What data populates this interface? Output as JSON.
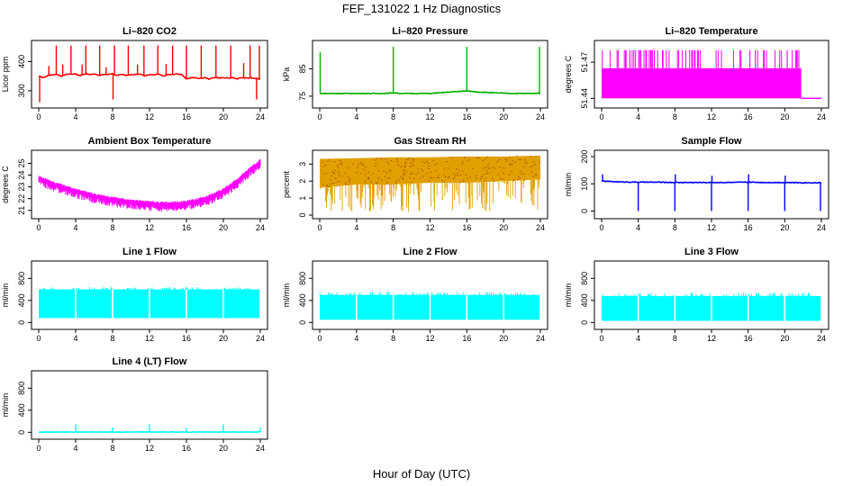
{
  "figure": {
    "title": "FEF_131022  1 Hz Diagnostics",
    "xlabel": "Hour of Day (UTC)"
  },
  "chart_data": [
    {
      "id": "co2",
      "type": "line",
      "title": "Li–820 CO2",
      "ylabel": "Licor ppm",
      "color": "#ff0000",
      "xlim": [
        0,
        24
      ],
      "ylim": [
        253,
        460
      ],
      "xticks": [
        0,
        4,
        8,
        12,
        16,
        20,
        24
      ],
      "yticks": [
        300,
        400
      ],
      "x": [
        0,
        0.5,
        1,
        1.5,
        2,
        2.5,
        3,
        3.5,
        4,
        4.5,
        5,
        5.5,
        6,
        6.5,
        7,
        7.5,
        8,
        8.5,
        9,
        9.5,
        10,
        10.5,
        11,
        11.5,
        12,
        12.5,
        13,
        13.5,
        14,
        14.5,
        15,
        15.5,
        16,
        16.5,
        17,
        17.5,
        18,
        18.5,
        19,
        19.5,
        20,
        20.5,
        21,
        21.5,
        22,
        22.5,
        23,
        23.5,
        24
      ],
      "y": [
        350,
        345,
        352,
        355,
        356,
        350,
        356,
        357,
        357,
        352,
        358,
        356,
        357,
        353,
        355,
        356,
        358,
        352,
        356,
        353,
        355,
        356,
        356,
        352,
        355,
        355,
        358,
        350,
        356,
        356,
        358,
        355,
        340,
        345,
        344,
        342,
        345,
        340,
        346,
        344,
        344,
        343,
        345,
        341,
        345,
        343,
        344,
        342,
        340
      ],
      "spikes": [
        {
          "x": 0.1,
          "y": 260
        },
        {
          "x": 1.1,
          "y": 385
        },
        {
          "x": 1.9,
          "y": 455
        },
        {
          "x": 2.6,
          "y": 390
        },
        {
          "x": 3.5,
          "y": 455
        },
        {
          "x": 4.7,
          "y": 390
        },
        {
          "x": 5.1,
          "y": 455
        },
        {
          "x": 6.6,
          "y": 455
        },
        {
          "x": 7.3,
          "y": 380
        },
        {
          "x": 8.05,
          "y": 270
        },
        {
          "x": 8.2,
          "y": 455
        },
        {
          "x": 9.7,
          "y": 455
        },
        {
          "x": 10.7,
          "y": 390
        },
        {
          "x": 11.4,
          "y": 455
        },
        {
          "x": 12.9,
          "y": 455
        },
        {
          "x": 13.8,
          "y": 392
        },
        {
          "x": 14.5,
          "y": 455
        },
        {
          "x": 16.0,
          "y": 455
        },
        {
          "x": 17.6,
          "y": 455
        },
        {
          "x": 19.2,
          "y": 455
        },
        {
          "x": 20.8,
          "y": 455
        },
        {
          "x": 22.2,
          "y": 395
        },
        {
          "x": 22.9,
          "y": 455
        },
        {
          "x": 23.6,
          "y": 270
        },
        {
          "x": 23.9,
          "y": 455
        }
      ]
    },
    {
      "id": "pressure",
      "type": "line",
      "title": "Li–820 Pressure",
      "ylabel": "kPa",
      "color": "#00b000",
      "xlim": [
        0,
        24
      ],
      "ylim": [
        72,
        94
      ],
      "xticks": [
        0,
        4,
        8,
        12,
        16,
        20,
        24
      ],
      "yticks": [
        75,
        85
      ],
      "x": [
        0,
        1,
        2,
        3,
        4,
        5,
        6,
        7,
        8,
        9,
        10,
        11,
        12,
        13,
        14,
        15,
        16,
        17,
        18,
        19,
        20,
        21,
        22,
        23,
        24
      ],
      "y": [
        76,
        76,
        76,
        76,
        76,
        76,
        76,
        76,
        76.2,
        76,
        76,
        76,
        76,
        76.2,
        76.5,
        76.7,
        76.9,
        76.6,
        76.4,
        76.2,
        76.1,
        76,
        76,
        76,
        76.1
      ],
      "spikes": [
        {
          "x": 0.05,
          "y": 91
        },
        {
          "x": 8.0,
          "y": 93
        },
        {
          "x": 16.0,
          "y": 93
        },
        {
          "x": 23.9,
          "y": 93
        }
      ]
    },
    {
      "id": "temperature",
      "type": "area",
      "title": "Li–820 Temperature",
      "ylabel": "degrees C",
      "color": "#ff00ff",
      "xlim": [
        0,
        24
      ],
      "ylim": [
        51.435,
        51.485
      ],
      "xticks": [
        0,
        4,
        8,
        12,
        16,
        20,
        24
      ],
      "yticks": [
        51.44,
        51.47
      ],
      "band_low": 51.44,
      "band_high": 51.465,
      "band_x": [
        0,
        21.8
      ],
      "max_value": 51.48,
      "tail": {
        "x": [
          21.8,
          24
        ],
        "y": 51.44
      }
    },
    {
      "id": "ambient",
      "type": "line",
      "title": "Ambient Box Temperature",
      "ylabel": "degrees C",
      "color": "#ff00ff",
      "xlim": [
        0,
        24
      ],
      "ylim": [
        20.6,
        25.8
      ],
      "xticks": [
        0,
        4,
        8,
        12,
        16,
        20,
        24
      ],
      "yticks": [
        21,
        22,
        23,
        24,
        25
      ],
      "x": [
        0,
        1,
        2,
        3,
        4,
        5,
        6,
        7,
        8,
        9,
        10,
        11,
        12,
        13,
        14,
        15,
        16,
        17,
        18,
        19,
        20,
        21,
        22,
        23,
        24
      ],
      "y": [
        23.8,
        23.5,
        23.2,
        22.95,
        22.7,
        22.5,
        22.3,
        22.15,
        22.0,
        21.9,
        21.8,
        21.7,
        21.65,
        21.6,
        21.6,
        21.62,
        21.7,
        21.85,
        22.05,
        22.35,
        22.75,
        23.25,
        23.9,
        24.6,
        25.2
      ],
      "spread": 0.7
    },
    {
      "id": "rh",
      "type": "area",
      "title": "Gas Stream RH",
      "ylabel": "percent",
      "color": "#e0a000",
      "xlim": [
        0,
        24
      ],
      "ylim": [
        0,
        3.6
      ],
      "xticks": [
        0,
        4,
        8,
        12,
        16,
        20,
        24
      ],
      "yticks": [
        0,
        1,
        2,
        3
      ],
      "x": [
        0,
        4,
        8,
        12,
        16,
        20,
        24
      ],
      "upper": [
        3.3,
        3.35,
        3.4,
        3.4,
        3.45,
        3.45,
        3.5
      ],
      "lower": [
        1.6,
        1.8,
        1.8,
        1.9,
        1.9,
        2.0,
        2.1
      ],
      "min_value": 0.2
    },
    {
      "id": "sample",
      "type": "line",
      "title": "Sample Flow",
      "ylabel": "ml/min",
      "color": "#0000ff",
      "xlim": [
        0,
        24
      ],
      "ylim": [
        -15,
        210
      ],
      "xticks": [
        0,
        4,
        8,
        12,
        16,
        20,
        24
      ],
      "yticks": [
        0,
        100,
        200
      ],
      "x": [
        0,
        2,
        4,
        6,
        8,
        10,
        12,
        14,
        16,
        18,
        20,
        22,
        24
      ],
      "y": [
        110,
        107,
        106,
        106,
        105,
        105,
        105,
        105,
        106,
        105,
        105,
        104,
        104
      ],
      "spikes": [
        {
          "x": 0.1,
          "y": 135
        },
        {
          "x": 4.0,
          "y": 0
        },
        {
          "x": 8.0,
          "y": 0
        },
        {
          "x": 8.05,
          "y": 135
        },
        {
          "x": 12.0,
          "y": 0
        },
        {
          "x": 12.05,
          "y": 130
        },
        {
          "x": 16.0,
          "y": 0
        },
        {
          "x": 16.05,
          "y": 135
        },
        {
          "x": 20.0,
          "y": 0
        },
        {
          "x": 20.05,
          "y": 130
        },
        {
          "x": 23.9,
          "y": 0
        }
      ]
    },
    {
      "id": "line1",
      "type": "area",
      "title": "Line 1 Flow",
      "ylabel": "ml/min",
      "color": "#00ffff",
      "xlim": [
        0,
        24
      ],
      "ylim": [
        -60,
        1050
      ],
      "xticks": [
        0,
        4,
        8,
        12,
        16,
        20,
        24
      ],
      "yticks": [
        0,
        400,
        800
      ],
      "band_low": 80,
      "band_high": 600,
      "band_x": [
        0,
        24
      ],
      "max_value": 640,
      "gaps": [
        4.0,
        8.0,
        12.0,
        16.0,
        20.0
      ]
    },
    {
      "id": "line2",
      "type": "area",
      "title": "Line 2 Flow",
      "ylabel": "ml/min",
      "color": "#00ffff",
      "xlim": [
        0,
        24
      ],
      "ylim": [
        -60,
        1050
      ],
      "xticks": [
        0,
        4,
        8,
        12,
        16,
        20,
        24
      ],
      "yticks": [
        0,
        400,
        800
      ],
      "band_low": 50,
      "band_high": 500,
      "band_x": [
        0,
        24
      ],
      "max_value": 550,
      "gaps": [
        4.0,
        8.0,
        12.0,
        16.0,
        20.0
      ]
    },
    {
      "id": "line3",
      "type": "area",
      "title": "Line 3 Flow",
      "ylabel": "ml/min",
      "color": "#00ffff",
      "xlim": [
        0,
        24
      ],
      "ylim": [
        -60,
        1050
      ],
      "xticks": [
        0,
        4,
        8,
        12,
        16,
        20,
        24
      ],
      "yticks": [
        0,
        400,
        800
      ],
      "band_low": 30,
      "band_high": 480,
      "band_x": [
        0,
        24
      ],
      "max_value": 540,
      "gaps": [
        4.0,
        8.0,
        12.0,
        16.0,
        20.0
      ]
    },
    {
      "id": "line4",
      "type": "line",
      "title": "Line 4 (LT) Flow",
      "ylabel": "ml/min",
      "color": "#00ffff",
      "xlim": [
        0,
        24
      ],
      "ylim": [
        -60,
        1050
      ],
      "xticks": [
        0,
        4,
        8,
        12,
        16,
        20,
        24
      ],
      "yticks": [
        0,
        400,
        800
      ],
      "x": [
        0,
        24
      ],
      "y": [
        5,
        5
      ],
      "spikes": [
        {
          "x": 4.0,
          "y": 150
        },
        {
          "x": 8.0,
          "y": 90
        },
        {
          "x": 12.0,
          "y": 150
        },
        {
          "x": 16.0,
          "y": 80
        },
        {
          "x": 20.0,
          "y": 150
        },
        {
          "x": 24.0,
          "y": 90
        }
      ]
    }
  ]
}
